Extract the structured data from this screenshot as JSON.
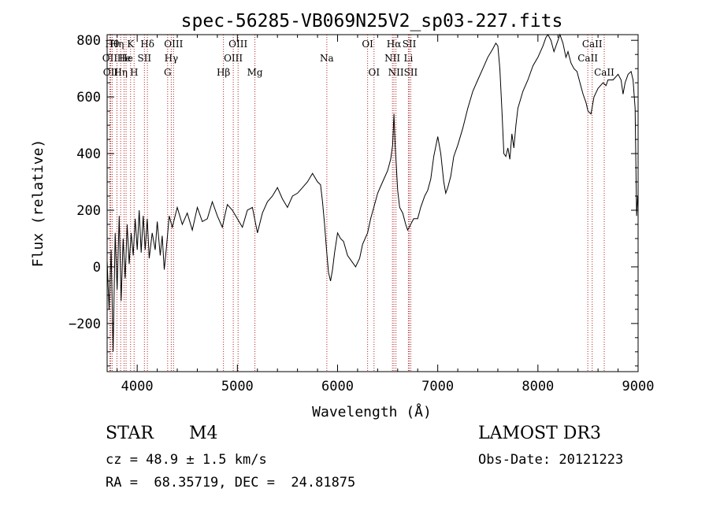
{
  "chart_data": {
    "type": "line",
    "title": "spec-56285-VB069N25V2_sp03-227.fits",
    "xlabel": "Wavelength (Å)",
    "ylabel": "Flux (relative)",
    "xlim": [
      3700,
      9000
    ],
    "ylim": [
      -370,
      820
    ],
    "x_ticks": [
      4000,
      5000,
      6000,
      7000,
      8000,
      9000
    ],
    "x_tick_labels": [
      "4000",
      "5000",
      "6000",
      "7000",
      "8000",
      "9000"
    ],
    "y_ticks": [
      -200,
      0,
      200,
      400,
      600,
      800
    ],
    "y_tick_labels": [
      "−200",
      "0",
      "200",
      "400",
      "600",
      "800"
    ],
    "grid": false,
    "line_color": "#000000",
    "marker_color": "#b22222",
    "series": [
      {
        "values": [
          [
            3700,
            20
          ],
          [
            3720,
            -150
          ],
          [
            3740,
            60
          ],
          [
            3760,
            -300
          ],
          [
            3780,
            120
          ],
          [
            3800,
            -80
          ],
          [
            3820,
            180
          ],
          [
            3840,
            -120
          ],
          [
            3860,
            100
          ],
          [
            3880,
            -40
          ],
          [
            3900,
            150
          ],
          [
            3920,
            10
          ],
          [
            3940,
            120
          ],
          [
            3960,
            40
          ],
          [
            3980,
            170
          ],
          [
            4000,
            60
          ],
          [
            4020,
            200
          ],
          [
            4040,
            50
          ],
          [
            4060,
            180
          ],
          [
            4080,
            60
          ],
          [
            4100,
            170
          ],
          [
            4120,
            30
          ],
          [
            4150,
            120
          ],
          [
            4180,
            60
          ],
          [
            4200,
            160
          ],
          [
            4230,
            40
          ],
          [
            4250,
            110
          ],
          [
            4270,
            -10
          ],
          [
            4290,
            60
          ],
          [
            4320,
            180
          ],
          [
            4350,
            140
          ],
          [
            4400,
            210
          ],
          [
            4450,
            150
          ],
          [
            4500,
            190
          ],
          [
            4550,
            130
          ],
          [
            4600,
            210
          ],
          [
            4650,
            160
          ],
          [
            4700,
            170
          ],
          [
            4750,
            230
          ],
          [
            4800,
            180
          ],
          [
            4850,
            140
          ],
          [
            4880,
            190
          ],
          [
            4900,
            220
          ],
          [
            4950,
            200
          ],
          [
            5000,
            170
          ],
          [
            5050,
            140
          ],
          [
            5100,
            200
          ],
          [
            5150,
            210
          ],
          [
            5200,
            120
          ],
          [
            5250,
            190
          ],
          [
            5300,
            230
          ],
          [
            5350,
            250
          ],
          [
            5400,
            280
          ],
          [
            5450,
            240
          ],
          [
            5500,
            210
          ],
          [
            5550,
            250
          ],
          [
            5600,
            260
          ],
          [
            5650,
            280
          ],
          [
            5700,
            300
          ],
          [
            5750,
            330
          ],
          [
            5800,
            300
          ],
          [
            5830,
            290
          ],
          [
            5850,
            230
          ],
          [
            5870,
            150
          ],
          [
            5890,
            60
          ],
          [
            5910,
            -20
          ],
          [
            5930,
            -50
          ],
          [
            5950,
            -10
          ],
          [
            5970,
            50
          ],
          [
            6000,
            120
          ],
          [
            6030,
            100
          ],
          [
            6060,
            90
          ],
          [
            6100,
            40
          ],
          [
            6140,
            20
          ],
          [
            6180,
            0
          ],
          [
            6220,
            30
          ],
          [
            6250,
            80
          ],
          [
            6300,
            120
          ],
          [
            6330,
            170
          ],
          [
            6370,
            220
          ],
          [
            6400,
            260
          ],
          [
            6450,
            300
          ],
          [
            6500,
            340
          ],
          [
            6530,
            380
          ],
          [
            6550,
            430
          ],
          [
            6563,
            540
          ],
          [
            6575,
            430
          ],
          [
            6600,
            270
          ],
          [
            6620,
            210
          ],
          [
            6650,
            190
          ],
          [
            6680,
            150
          ],
          [
            6700,
            130
          ],
          [
            6730,
            150
          ],
          [
            6760,
            170
          ],
          [
            6800,
            170
          ],
          [
            6830,
            210
          ],
          [
            6870,
            250
          ],
          [
            6900,
            270
          ],
          [
            6930,
            310
          ],
          [
            6960,
            390
          ],
          [
            7000,
            460
          ],
          [
            7030,
            400
          ],
          [
            7060,
            300
          ],
          [
            7080,
            260
          ],
          [
            7100,
            280
          ],
          [
            7130,
            320
          ],
          [
            7160,
            390
          ],
          [
            7200,
            430
          ],
          [
            7250,
            490
          ],
          [
            7300,
            560
          ],
          [
            7350,
            620
          ],
          [
            7400,
            660
          ],
          [
            7450,
            700
          ],
          [
            7500,
            740
          ],
          [
            7550,
            770
          ],
          [
            7580,
            790
          ],
          [
            7600,
            780
          ],
          [
            7620,
            700
          ],
          [
            7640,
            560
          ],
          [
            7660,
            400
          ],
          [
            7680,
            390
          ],
          [
            7700,
            420
          ],
          [
            7720,
            380
          ],
          [
            7740,
            470
          ],
          [
            7760,
            420
          ],
          [
            7780,
            500
          ],
          [
            7800,
            560
          ],
          [
            7850,
            620
          ],
          [
            7900,
            660
          ],
          [
            7950,
            710
          ],
          [
            8000,
            740
          ],
          [
            8050,
            780
          ],
          [
            8080,
            810
          ],
          [
            8100,
            830
          ],
          [
            8130,
            800
          ],
          [
            8160,
            760
          ],
          [
            8190,
            790
          ],
          [
            8220,
            830
          ],
          [
            8250,
            790
          ],
          [
            8280,
            740
          ],
          [
            8300,
            760
          ],
          [
            8330,
            720
          ],
          [
            8360,
            700
          ],
          [
            8390,
            690
          ],
          [
            8420,
            650
          ],
          [
            8450,
            610
          ],
          [
            8480,
            580
          ],
          [
            8500,
            550
          ],
          [
            8530,
            540
          ],
          [
            8560,
            600
          ],
          [
            8600,
            630
          ],
          [
            8650,
            650
          ],
          [
            8680,
            640
          ],
          [
            8700,
            660
          ],
          [
            8750,
            660
          ],
          [
            8800,
            680
          ],
          [
            8830,
            660
          ],
          [
            8850,
            610
          ],
          [
            8870,
            650
          ],
          [
            8900,
            680
          ],
          [
            8930,
            690
          ],
          [
            8950,
            660
          ],
          [
            8970,
            560
          ],
          [
            8985,
            180
          ],
          [
            8995,
            250
          ]
        ]
      }
    ],
    "line_markers": [
      {
        "wavelength": 3727,
        "label": "OII",
        "row": 2
      },
      {
        "wavelength": 3735,
        "label": "OII",
        "row": 3
      },
      {
        "wavelength": 3750,
        "label": "Hθ",
        "row": 1
      },
      {
        "wavelength": 3798,
        "label": "Hη",
        "row": 1
      },
      {
        "wavelength": 3835,
        "label": "Hη",
        "row": 3
      },
      {
        "wavelength": 3869,
        "label": "He",
        "row": 2
      },
      {
        "wavelength": 3889,
        "label": "He",
        "row": 2
      },
      {
        "wavelength": 3934,
        "label": "K",
        "row": 1
      },
      {
        "wavelength": 3969,
        "label": "H",
        "row": 3
      },
      {
        "wavelength": 4072,
        "label": "SII",
        "row": 2
      },
      {
        "wavelength": 4102,
        "label": "Hδ",
        "row": 1
      },
      {
        "wavelength": 4304,
        "label": "G",
        "row": 3
      },
      {
        "wavelength": 4340,
        "label": "Hγ",
        "row": 2
      },
      {
        "wavelength": 4363,
        "label": "OIII",
        "row": 1
      },
      {
        "wavelength": 4861,
        "label": "Hβ",
        "row": 3
      },
      {
        "wavelength": 4959,
        "label": "OIII",
        "row": 2
      },
      {
        "wavelength": 5007,
        "label": "OIII",
        "row": 1
      },
      {
        "wavelength": 5175,
        "label": "Mg",
        "row": 3
      },
      {
        "wavelength": 5893,
        "label": "Na",
        "row": 2
      },
      {
        "wavelength": 6300,
        "label": "OI",
        "row": 1
      },
      {
        "wavelength": 6364,
        "label": "OI",
        "row": 3
      },
      {
        "wavelength": 6548,
        "label": "NII",
        "row": 2
      },
      {
        "wavelength": 6563,
        "label": "Hα",
        "row": 1
      },
      {
        "wavelength": 6583,
        "label": "NII",
        "row": 3
      },
      {
        "wavelength": 6707,
        "label": "Li",
        "row": 2
      },
      {
        "wavelength": 6716,
        "label": "SII",
        "row": 1
      },
      {
        "wavelength": 6731,
        "label": "SII",
        "row": 3
      },
      {
        "wavelength": 8498,
        "label": "CaII",
        "row": 2
      },
      {
        "wavelength": 8542,
        "label": "CaII",
        "row": 1
      },
      {
        "wavelength": 8662,
        "label": "CaII",
        "row": 3
      }
    ]
  },
  "info": {
    "object_class": "STAR",
    "subclass": "M4",
    "redshift": "cz = 48.9 ± 1.5 km/s",
    "coordinates": "RA =  68.35719, DEC =  24.81875",
    "survey": "LAMOST DR3",
    "obs_date": "Obs-Date: 20121223"
  }
}
